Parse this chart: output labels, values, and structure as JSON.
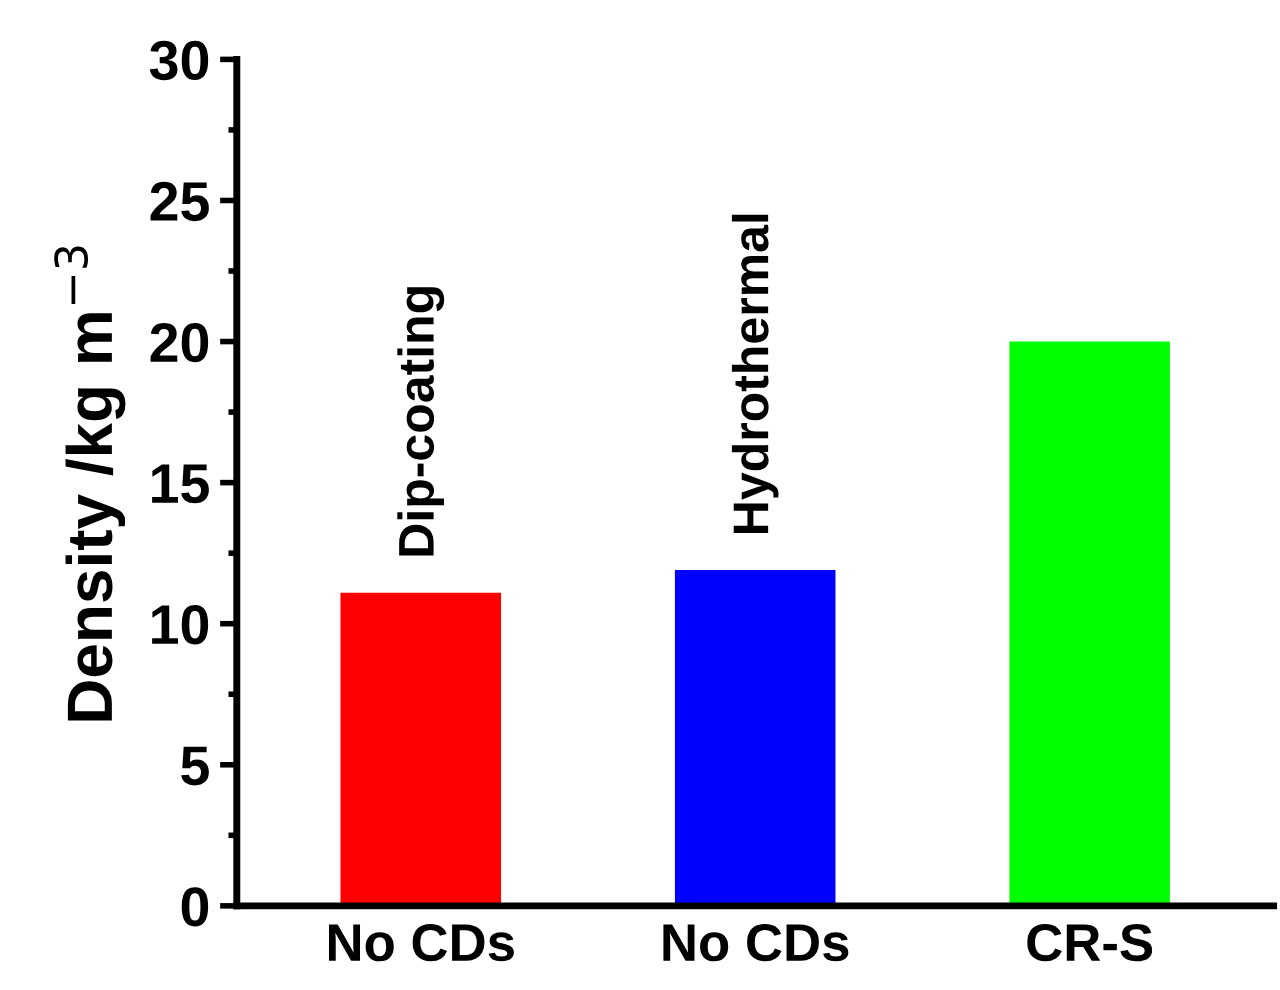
{
  "chart_data": {
    "type": "bar",
    "ylabel": "Density /kg m$^{−3}$",
    "categories": [
      "No CDs",
      "No CDs",
      "CR-S"
    ],
    "values": [
      11.1,
      11.9,
      20.0
    ],
    "colors": [
      "#ff0000",
      "#0000ff",
      "#00ff00"
    ],
    "ylim": [
      0,
      30
    ],
    "yticks": [
      0,
      5,
      10,
      15,
      20,
      25,
      30
    ],
    "annotations": [
      "Dip-coating",
      "Hydrothermal"
    ],
    "grid": false
  }
}
